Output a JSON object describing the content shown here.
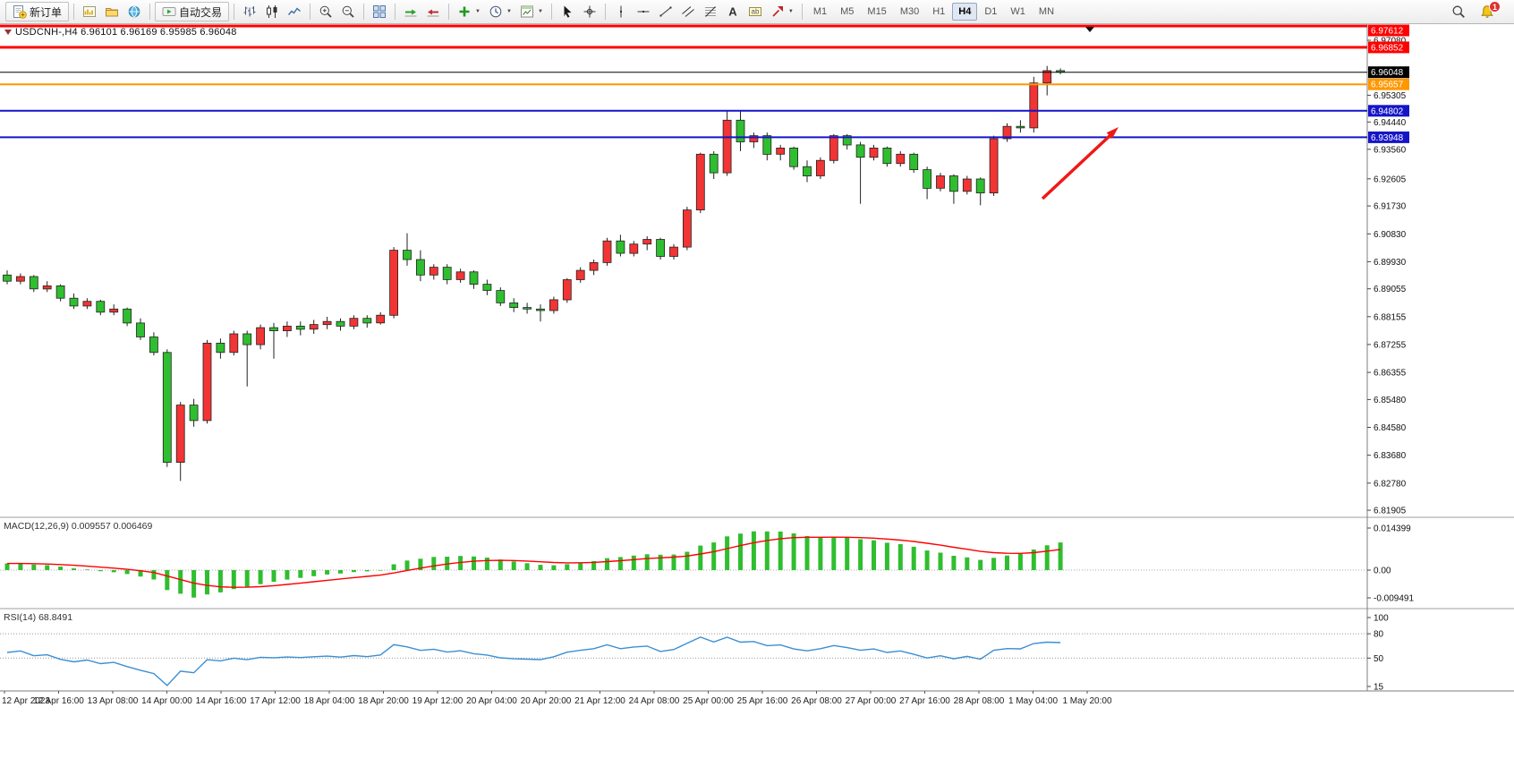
{
  "toolbar": {
    "groups": [
      {
        "items": [
          {
            "name": "new-order",
            "icon": "new-order",
            "label": "新订单"
          }
        ]
      },
      {
        "items": [
          {
            "name": "charts",
            "icon": "charts"
          },
          {
            "name": "profiles",
            "icon": "profiles"
          },
          {
            "name": "data-window",
            "icon": "data-window"
          }
        ]
      },
      {
        "items": [
          {
            "name": "autotrading",
            "icon": "autotrading",
            "label": "自动交易"
          }
        ]
      },
      {
        "items": [
          {
            "name": "bar-chart",
            "icon": "ohlc-bars"
          },
          {
            "name": "candlestick-chart",
            "icon": "candles"
          },
          {
            "name": "line-chart",
            "icon": "line-chart"
          }
        ]
      },
      {
        "items": [
          {
            "name": "zoom-in",
            "icon": "zoom-in"
          },
          {
            "name": "zoom-out",
            "icon": "zoom-out"
          }
        ]
      },
      {
        "items": [
          {
            "name": "tile-windows",
            "icon": "tile-windows"
          }
        ]
      },
      {
        "items": [
          {
            "name": "auto-scroll",
            "icon": "auto-scroll"
          },
          {
            "name": "chart-shift",
            "icon": "chart-shift"
          }
        ]
      },
      {
        "items": [
          {
            "name": "indicators",
            "icon": "indicators",
            "caret": true
          },
          {
            "name": "periods",
            "icon": "clock",
            "caret": true
          },
          {
            "name": "templates",
            "icon": "template",
            "caret": true
          }
        ]
      },
      {
        "items": [
          {
            "name": "cursor",
            "icon": "cursor"
          },
          {
            "name": "crosshair",
            "icon": "crosshair"
          }
        ]
      },
      {
        "items": [
          {
            "name": "vertical-line",
            "icon": "vline"
          },
          {
            "name": "horizontal-line",
            "icon": "hline"
          },
          {
            "name": "trendline",
            "icon": "trendline"
          },
          {
            "name": "equidistant-channel",
            "icon": "channel"
          },
          {
            "name": "fibonacci",
            "icon": "fibonacci"
          },
          {
            "name": "text",
            "icon": "text"
          },
          {
            "name": "text-label",
            "icon": "label"
          },
          {
            "name": "arrows",
            "icon": "arrow-tool",
            "caret": true
          }
        ]
      }
    ],
    "timeframes": {
      "options": [
        "M1",
        "M5",
        "M15",
        "M30",
        "H1",
        "H4",
        "D1",
        "W1",
        "MN"
      ],
      "active": "H4"
    },
    "right": [
      {
        "name": "symbol-search",
        "icon": "magnifier"
      },
      {
        "name": "notifications",
        "icon": "bell",
        "badge": "1"
      }
    ]
  },
  "chart_data": {
    "type": "candlestick",
    "symbol": "USDCNH-",
    "timeframe": "H4",
    "header": "USDCNH-,H4  6.96101 6.96169 6.95985 6.96048",
    "ohlc_current": {
      "open": "6.96101",
      "high": "6.96169",
      "low": "6.95985",
      "close": "6.96048"
    },
    "bull_color": "#f23434",
    "bear_color": "#2fbe2f",
    "wick_color": "#222222",
    "candles": [
      [
        6.895,
        6.8965,
        6.892,
        6.893
      ],
      [
        6.893,
        6.8955,
        6.892,
        6.8945
      ],
      [
        6.8945,
        6.895,
        6.8895,
        6.8905
      ],
      [
        6.8905,
        6.893,
        6.8895,
        6.8915
      ],
      [
        6.8915,
        6.892,
        6.8865,
        6.8875
      ],
      [
        6.8875,
        6.889,
        6.884,
        6.885
      ],
      [
        6.885,
        6.8875,
        6.884,
        6.8865
      ],
      [
        6.8865,
        6.887,
        6.882,
        6.883
      ],
      [
        6.883,
        6.8855,
        6.882,
        6.884
      ],
      [
        6.884,
        6.8845,
        6.8785,
        6.8795
      ],
      [
        6.8795,
        6.881,
        6.874,
        6.875
      ],
      [
        6.875,
        6.8765,
        6.869,
        6.87
      ],
      [
        6.87,
        6.871,
        6.833,
        6.8345
      ],
      [
        6.8345,
        6.854,
        6.8285,
        6.853
      ],
      [
        6.853,
        6.855,
        6.846,
        6.848
      ],
      [
        6.848,
        6.874,
        6.847,
        6.873
      ],
      [
        6.873,
        6.8745,
        6.868,
        6.87
      ],
      [
        6.87,
        6.877,
        6.869,
        6.876
      ],
      [
        6.876,
        6.877,
        6.859,
        6.8725
      ],
      [
        6.8725,
        6.879,
        6.871,
        6.878
      ],
      [
        6.878,
        6.8795,
        6.868,
        6.877
      ],
      [
        6.877,
        6.88,
        6.875,
        6.8785
      ],
      [
        6.8785,
        6.88,
        6.8755,
        6.8775
      ],
      [
        6.8775,
        6.8805,
        6.876,
        6.879
      ],
      [
        6.879,
        6.8815,
        6.8775,
        6.88
      ],
      [
        6.88,
        6.881,
        6.877,
        6.8785
      ],
      [
        6.8785,
        6.882,
        6.8775,
        6.881
      ],
      [
        6.881,
        6.882,
        6.878,
        6.8795
      ],
      [
        6.8795,
        6.883,
        6.879,
        6.882
      ],
      [
        6.882,
        6.904,
        6.881,
        6.903
      ],
      [
        6.903,
        6.9085,
        6.898,
        6.9
      ],
      [
        6.9,
        6.903,
        6.893,
        6.895
      ],
      [
        6.895,
        6.8985,
        6.8935,
        6.8975
      ],
      [
        6.8975,
        6.8985,
        6.892,
        6.8935
      ],
      [
        6.8935,
        6.897,
        6.8925,
        6.896
      ],
      [
        6.896,
        6.8965,
        6.8905,
        6.892
      ],
      [
        6.892,
        6.8935,
        6.8885,
        6.89
      ],
      [
        6.89,
        6.891,
        6.885,
        6.886
      ],
      [
        6.886,
        6.8875,
        6.883,
        6.8845
      ],
      [
        6.8845,
        6.886,
        6.8825,
        6.884
      ],
      [
        6.884,
        6.8855,
        6.88,
        6.8835
      ],
      [
        6.8835,
        6.888,
        6.8825,
        6.887
      ],
      [
        6.887,
        6.894,
        6.886,
        6.8935
      ],
      [
        6.8935,
        6.8975,
        6.8925,
        6.8965
      ],
      [
        6.8965,
        6.9,
        6.895,
        6.899
      ],
      [
        6.899,
        6.907,
        6.898,
        6.906
      ],
      [
        6.906,
        6.908,
        6.901,
        6.902
      ],
      [
        6.902,
        6.906,
        6.901,
        6.905
      ],
      [
        6.905,
        6.9075,
        6.903,
        6.9065
      ],
      [
        6.9065,
        6.907,
        6.9,
        6.901
      ],
      [
        6.901,
        6.905,
        6.9,
        6.904
      ],
      [
        6.904,
        6.917,
        6.903,
        6.916
      ],
      [
        6.916,
        6.9345,
        6.915,
        6.934
      ],
      [
        6.934,
        6.935,
        6.926,
        6.928
      ],
      [
        6.928,
        6.948,
        6.927,
        6.945
      ],
      [
        6.945,
        6.948,
        6.935,
        6.938
      ],
      [
        6.938,
        6.941,
        6.936,
        6.94
      ],
      [
        6.94,
        6.941,
        6.932,
        6.934
      ],
      [
        6.934,
        6.937,
        6.932,
        6.936
      ],
      [
        6.936,
        6.9365,
        6.929,
        6.93
      ],
      [
        6.93,
        6.932,
        6.925,
        6.927
      ],
      [
        6.927,
        6.933,
        6.926,
        6.932
      ],
      [
        6.932,
        6.9405,
        6.931,
        6.94
      ],
      [
        6.94,
        6.9405,
        6.9355,
        6.937
      ],
      [
        6.937,
        6.938,
        6.918,
        6.933
      ],
      [
        6.933,
        6.937,
        6.932,
        6.936
      ],
      [
        6.936,
        6.9365,
        6.93,
        6.931
      ],
      [
        6.931,
        6.935,
        6.93,
        6.934
      ],
      [
        6.934,
        6.9345,
        6.928,
        6.929
      ],
      [
        6.929,
        6.93,
        6.9195,
        6.923
      ],
      [
        6.923,
        6.928,
        6.922,
        6.927
      ],
      [
        6.927,
        6.9275,
        6.918,
        6.922
      ],
      [
        6.922,
        6.927,
        6.921,
        6.926
      ],
      [
        6.926,
        6.9265,
        6.9175,
        6.9215
      ],
      [
        6.9215,
        6.94,
        6.9205,
        6.939
      ],
      [
        6.939,
        6.944,
        6.938,
        6.943
      ],
      [
        6.943,
        6.945,
        6.941,
        6.9425
      ],
      [
        6.9425,
        6.959,
        6.941,
        6.957
      ],
      [
        6.957,
        6.9625,
        6.953,
        6.961
      ],
      [
        6.96101,
        6.96169,
        6.95985,
        6.96048
      ]
    ],
    "levels": [
      {
        "price": 6.97612,
        "label": "6.97612",
        "color": "#ff0000",
        "width": 3
      },
      {
        "price": 6.96852,
        "label": "6.96852",
        "color": "#ff0000",
        "width": 3
      },
      {
        "price": 6.96048,
        "label": "6.96048",
        "color": "#000000",
        "width": 1,
        "type": "current-price"
      },
      {
        "price": 6.95657,
        "label": "6.95657",
        "color": "#ff9800",
        "width": 2
      },
      {
        "price": 6.94802,
        "label": "6.94802",
        "color": "#1515c8",
        "width": 2
      },
      {
        "price": 6.93948,
        "label": "6.93948",
        "color": "#1515c8",
        "width": 2
      }
    ],
    "price_axis_labels": [
      "6.97080",
      "6.95305",
      "6.94440",
      "6.93560",
      "6.92605",
      "6.91730",
      "6.90830",
      "6.89930",
      "6.89055",
      "6.88155",
      "6.87255",
      "6.86355",
      "6.85480",
      "6.84580",
      "6.83680",
      "6.82780",
      "6.81905"
    ],
    "time_labels": [
      "12 Apr 2023",
      "12 Apr 16:00",
      "13 Apr 08:00",
      "14 Apr 00:00",
      "14 Apr 16:00",
      "17 Apr 12:00",
      "18 Apr 04:00",
      "18 Apr 20:00",
      "19 Apr 12:00",
      "20 Apr 04:00",
      "20 Apr 20:00",
      "21 Apr 12:00",
      "24 Apr 08:00",
      "25 Apr 00:00",
      "25 Apr 16:00",
      "26 Apr 08:00",
      "27 Apr 00:00",
      "27 Apr 16:00",
      "28 Apr 08:00",
      "1 May 04:00",
      "1 May 20:00"
    ],
    "indicators": [
      {
        "name": "MACD",
        "display": "MACD(12,26,9) 0.009557 0.006469",
        "params": [
          12,
          26,
          9
        ],
        "values": [
          "0.009557",
          "0.006469"
        ],
        "scale_labels": [
          "0.014399",
          "0.00",
          "-0.009491"
        ],
        "histogram_color": "#2fbe2f",
        "signal_color": "#ff0000"
      },
      {
        "name": "RSI",
        "display": "RSI(14) 68.8491",
        "period": 14,
        "value": "68.8491",
        "scale_labels": [
          "100",
          "80",
          "50",
          "15"
        ],
        "level_lines": [
          80,
          50
        ],
        "line_color": "#3b8fd4"
      }
    ],
    "annotations": [
      {
        "type": "arrow",
        "direction": "up-right",
        "color": "#f01818"
      }
    ]
  }
}
